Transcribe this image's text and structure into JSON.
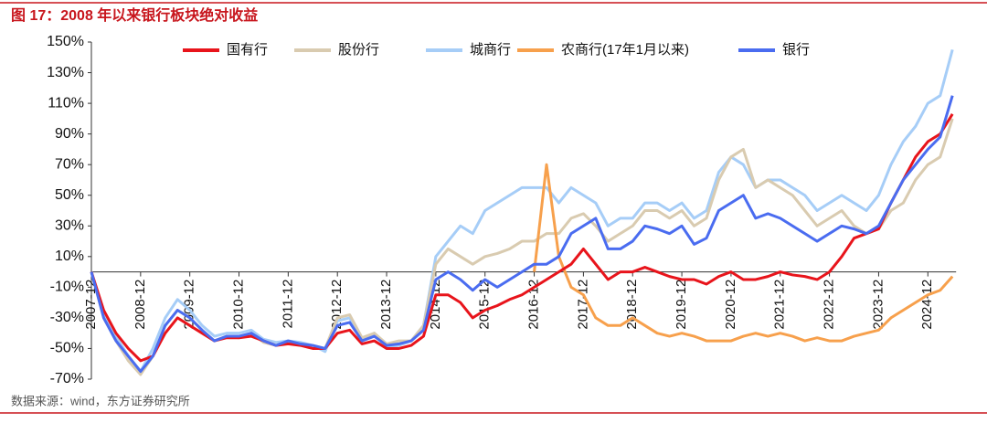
{
  "chart_data": {
    "type": "line",
    "title": "图 17：2008 年以来银行板块绝对收益",
    "source": "数据来源：wind，东方证券研究所",
    "x": [
      "2007-12",
      "2008-03",
      "2008-06",
      "2008-09",
      "2008-12",
      "2009-03",
      "2009-06",
      "2009-09",
      "2009-12",
      "2010-03",
      "2010-06",
      "2010-09",
      "2010-12",
      "2011-03",
      "2011-06",
      "2011-09",
      "2011-12",
      "2012-03",
      "2012-06",
      "2012-09",
      "2012-12",
      "2013-03",
      "2013-06",
      "2013-09",
      "2013-12",
      "2014-03",
      "2014-06",
      "2014-09",
      "2014-12",
      "2015-03",
      "2015-06",
      "2015-09",
      "2015-12",
      "2016-03",
      "2016-06",
      "2016-09",
      "2016-12",
      "2017-03",
      "2017-06",
      "2017-09",
      "2017-12",
      "2018-03",
      "2018-06",
      "2018-09",
      "2018-12",
      "2019-03",
      "2019-06",
      "2019-09",
      "2019-12",
      "2020-03",
      "2020-06",
      "2020-09",
      "2020-12",
      "2021-03",
      "2021-06",
      "2021-09",
      "2021-12",
      "2022-03",
      "2022-06",
      "2022-09",
      "2022-12",
      "2023-03",
      "2023-06",
      "2023-09",
      "2023-12",
      "2024-03",
      "2024-06",
      "2024-09",
      "2024-12",
      "2025-03",
      "2025-06"
    ],
    "xticks": [
      "2007-12",
      "2008-12",
      "2009-12",
      "2010-12",
      "2011-12",
      "2012-12",
      "2013-12",
      "2014-12",
      "2015-12",
      "2016-12",
      "2017-12",
      "2018-12",
      "2019-12",
      "2020-12",
      "2021-12",
      "2022-12",
      "2023-12",
      "2024-12"
    ],
    "ylim": [
      -70,
      150
    ],
    "yticks": [
      {
        "value": -70,
        "label": "-70%"
      },
      {
        "value": -50,
        "label": "-50%"
      },
      {
        "value": -30,
        "label": "-30%"
      },
      {
        "value": -10,
        "label": "-10%"
      },
      {
        "value": 10,
        "label": "10%"
      },
      {
        "value": 30,
        "label": "30%"
      },
      {
        "value": 50,
        "label": "50%"
      },
      {
        "value": 70,
        "label": "70%"
      },
      {
        "value": 90,
        "label": "90%"
      },
      {
        "value": 110,
        "label": "110%"
      },
      {
        "value": 130,
        "label": "130%"
      },
      {
        "value": 150,
        "label": "150%"
      }
    ],
    "series": [
      {
        "name": "国有行",
        "color": "#e8141b",
        "values": [
          0,
          -25,
          -40,
          -50,
          -58,
          -55,
          -40,
          -30,
          -35,
          -40,
          -45,
          -43,
          -43,
          -42,
          -45,
          -48,
          -47,
          -48,
          -50,
          -50,
          -40,
          -38,
          -47,
          -45,
          -50,
          -50,
          -48,
          -42,
          -15,
          -15,
          -20,
          -30,
          -25,
          -22,
          -18,
          -15,
          -10,
          -5,
          0,
          5,
          15,
          5,
          -5,
          0,
          0,
          3,
          0,
          -3,
          -5,
          -5,
          -8,
          -3,
          0,
          -5,
          -5,
          -3,
          0,
          -2,
          -3,
          -5,
          0,
          10,
          22,
          25,
          28,
          45,
          60,
          75,
          85,
          90,
          103
        ]
      },
      {
        "name": "股份行",
        "color": "#d9cbb0",
        "values": [
          0,
          -30,
          -45,
          -58,
          -67,
          -55,
          -35,
          -25,
          -30,
          -38,
          -45,
          -42,
          -43,
          -40,
          -46,
          -48,
          -46,
          -47,
          -48,
          -50,
          -30,
          -28,
          -43,
          -40,
          -47,
          -45,
          -45,
          -35,
          5,
          15,
          10,
          5,
          10,
          12,
          15,
          20,
          20,
          25,
          25,
          35,
          38,
          30,
          20,
          25,
          30,
          40,
          40,
          35,
          40,
          30,
          35,
          60,
          75,
          80,
          55,
          60,
          55,
          50,
          40,
          30,
          35,
          40,
          30,
          25,
          28,
          40,
          45,
          60,
          70,
          75,
          100
        ]
      },
      {
        "name": "城商行",
        "color": "#a6cdf7",
        "values": [
          0,
          -28,
          -42,
          -55,
          -65,
          -50,
          -30,
          -18,
          -25,
          -35,
          -42,
          -40,
          -40,
          -38,
          -44,
          -46,
          -45,
          -46,
          -48,
          -52,
          -32,
          -30,
          -45,
          -40,
          -50,
          -48,
          -45,
          -35,
          10,
          20,
          30,
          25,
          40,
          45,
          50,
          55,
          55,
          55,
          45,
          55,
          50,
          45,
          30,
          35,
          35,
          45,
          45,
          40,
          45,
          35,
          40,
          65,
          75,
          70,
          55,
          60,
          60,
          55,
          50,
          40,
          45,
          50,
          45,
          40,
          50,
          70,
          85,
          95,
          110,
          115,
          145
        ]
      },
      {
        "name": "农商行(17年1月以来)",
        "color": "#f7a04c",
        "values": [
          null,
          null,
          null,
          null,
          null,
          null,
          null,
          null,
          null,
          null,
          null,
          null,
          null,
          null,
          null,
          null,
          null,
          null,
          null,
          null,
          null,
          null,
          null,
          null,
          null,
          null,
          null,
          null,
          null,
          null,
          null,
          null,
          null,
          null,
          null,
          null,
          0,
          70,
          10,
          -10,
          -15,
          -30,
          -35,
          -35,
          -30,
          -35,
          -40,
          -42,
          -40,
          -42,
          -45,
          -45,
          -45,
          -42,
          -40,
          -42,
          -40,
          -42,
          -45,
          -43,
          -45,
          -45,
          -42,
          -40,
          -38,
          -30,
          -25,
          -20,
          -15,
          -12,
          -3
        ]
      },
      {
        "name": "银行",
        "color": "#4a6cf0",
        "values": [
          0,
          -30,
          -45,
          -55,
          -65,
          -55,
          -35,
          -25,
          -30,
          -38,
          -45,
          -42,
          -42,
          -40,
          -45,
          -48,
          -45,
          -47,
          -48,
          -50,
          -35,
          -33,
          -45,
          -42,
          -48,
          -47,
          -45,
          -38,
          -5,
          0,
          -5,
          -12,
          -5,
          -10,
          -5,
          0,
          5,
          5,
          10,
          25,
          30,
          35,
          15,
          15,
          20,
          30,
          28,
          25,
          30,
          18,
          22,
          40,
          45,
          50,
          35,
          38,
          35,
          30,
          25,
          20,
          25,
          30,
          28,
          25,
          30,
          45,
          60,
          70,
          80,
          88,
          115
        ]
      }
    ]
  }
}
